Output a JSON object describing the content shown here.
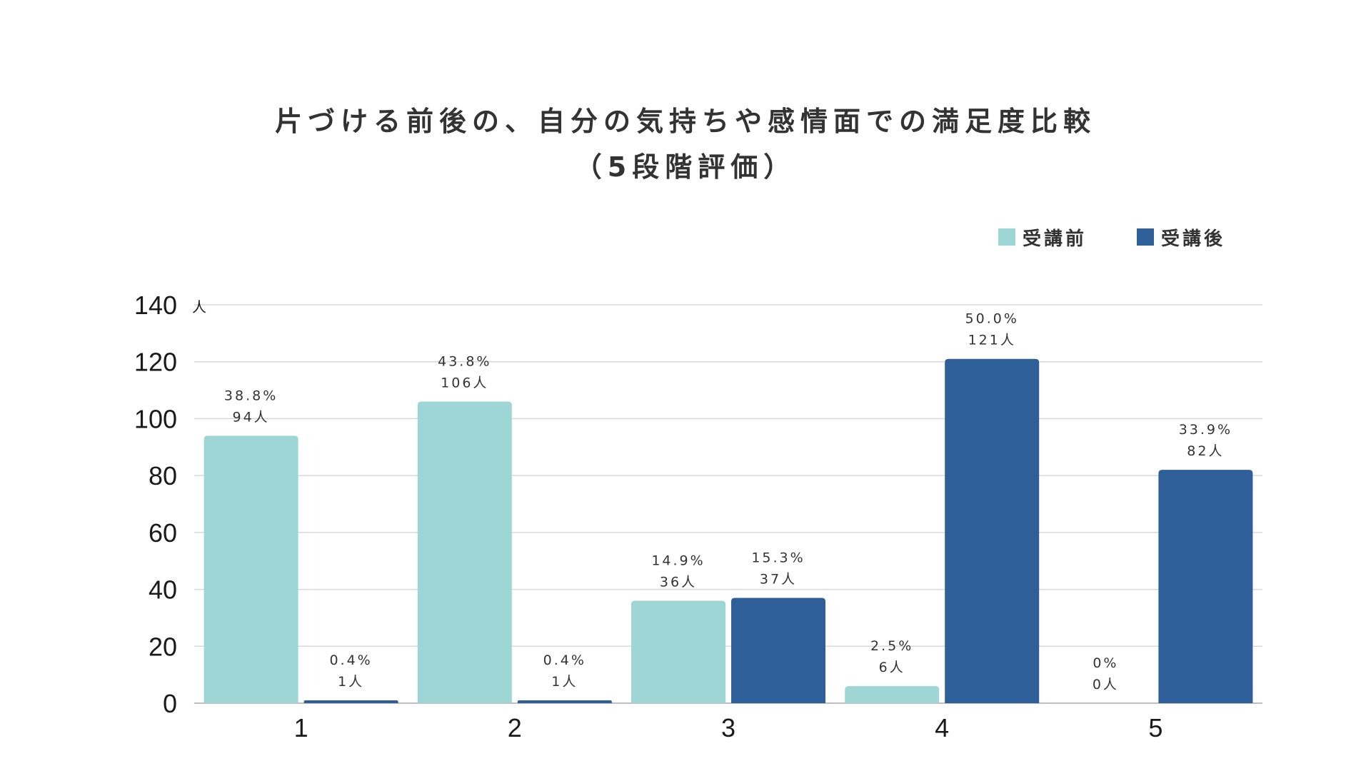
{
  "chart_data": {
    "type": "bar",
    "title_line1": "片づける前後の、自分の気持ちや感情面での満足度比較",
    "title_line2": "（5段階評価）",
    "y_unit": "人",
    "categories": [
      "1",
      "2",
      "3",
      "4",
      "5"
    ],
    "ylim": [
      0,
      140
    ],
    "yticks": [
      0,
      20,
      40,
      60,
      80,
      100,
      120,
      140
    ],
    "grid": true,
    "legend_position": "top-right",
    "series": [
      {
        "name": "受講前",
        "color": "#9ed6d6",
        "values": [
          94,
          106,
          36,
          6,
          0
        ],
        "percent_labels": [
          "38.8%",
          "43.8%",
          "14.9%",
          "2.5%",
          "0%"
        ],
        "count_labels": [
          "94人",
          "106人",
          "36人",
          "6人",
          "0人"
        ]
      },
      {
        "name": "受講後",
        "color": "#2e5f98",
        "values": [
          1,
          1,
          37,
          121,
          82
        ],
        "percent_labels": [
          "0.4%",
          "0.4%",
          "15.3%",
          "50.0%",
          "33.9%"
        ],
        "count_labels": [
          "1人",
          "1人",
          "37人",
          "121人",
          "82人"
        ]
      }
    ]
  }
}
